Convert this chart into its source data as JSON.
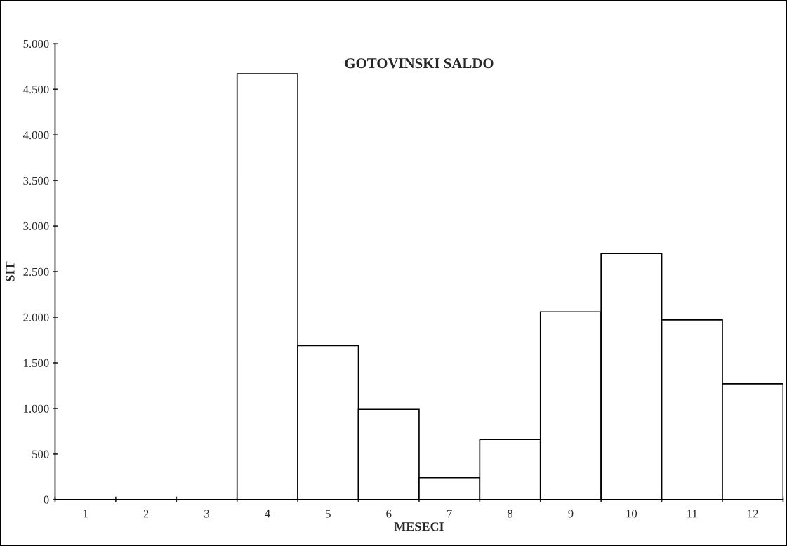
{
  "chart_data": {
    "type": "bar",
    "title": "GOTOVINSKI SALDO",
    "xlabel": "MESECI",
    "ylabel": "SIT",
    "categories": [
      "1",
      "2",
      "3",
      "4",
      "5",
      "6",
      "7",
      "8",
      "9",
      "10",
      "11",
      "12"
    ],
    "values": [
      0,
      0,
      0,
      4670,
      1690,
      990,
      240,
      660,
      2060,
      2700,
      1970,
      1270
    ],
    "color": "#ffffff",
    "ylim": [
      0,
      5000
    ],
    "yticks": [
      {
        "value": 0,
        "label": "0"
      },
      {
        "value": 500,
        "label": "500"
      },
      {
        "value": 1000,
        "label": "1.000"
      },
      {
        "value": 1500,
        "label": "1.500"
      },
      {
        "value": 2000,
        "label": "2.000"
      },
      {
        "value": 2500,
        "label": "2.500"
      },
      {
        "value": 3000,
        "label": "3.000"
      },
      {
        "value": 3500,
        "label": "3.500"
      },
      {
        "value": 4000,
        "label": "4.000"
      },
      {
        "value": 4500,
        "label": "4.500"
      },
      {
        "value": 5000,
        "label": "5.000"
      }
    ],
    "grid": false,
    "legend": false
  }
}
